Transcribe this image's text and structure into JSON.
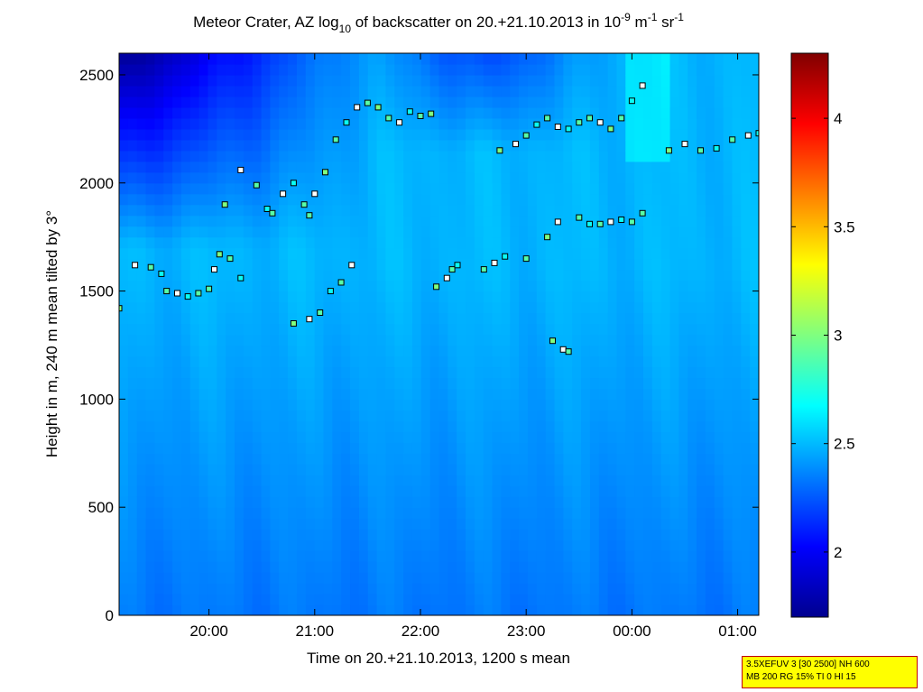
{
  "chart_data": {
    "type": "heatmap",
    "title_parts": {
      "main": "Meteor Crater, AZ log",
      "sub10": "10",
      "mid": " of backscatter on 20.+21.10.2013 in 10",
      "exp1": "-9",
      "unit1": " m",
      "exp2": "-1",
      "unit2": " sr",
      "exp3": "-1"
    },
    "xlabel": "Time on 20.+21.10.2013, 1200 s mean",
    "ylabel": "Height in m, 240 m mean tilted by 3°",
    "x_axis": {
      "start_hours": 19.15,
      "end_hours": 25.2,
      "ticks": [
        {
          "hours": 20,
          "label": "20:00"
        },
        {
          "hours": 21,
          "label": "21:00"
        },
        {
          "hours": 22,
          "label": "22:00"
        },
        {
          "hours": 23,
          "label": "23:00"
        },
        {
          "hours": 24,
          "label": "00:00"
        },
        {
          "hours": 25,
          "label": "01:00"
        }
      ]
    },
    "y_axis": {
      "ylim": [
        0,
        2600
      ],
      "ticks": [
        0,
        500,
        1000,
        1500,
        2000,
        2500
      ]
    },
    "colorbar": {
      "colormap": "jet",
      "range": [
        1.7,
        4.3
      ],
      "ticks": [
        2,
        2.5,
        3,
        3.5,
        4
      ]
    },
    "background_field": {
      "description_values_log10": "low heights ~2.35, mid heights ~2.45-2.6, upper region near 2400-2600 m at 19:15-21:30 ~1.8-2.0"
    },
    "cloud_layers": [
      {
        "name": "layer-A",
        "points": [
          [
            19.15,
            1420
          ],
          [
            19.3,
            1620
          ],
          [
            19.45,
            1610
          ],
          [
            19.55,
            1580
          ],
          [
            19.6,
            1500
          ],
          [
            19.7,
            1490
          ],
          [
            19.8,
            1475
          ],
          [
            19.9,
            1490
          ],
          [
            20.0,
            1510
          ],
          [
            20.05,
            1600
          ],
          [
            20.1,
            1670
          ],
          [
            20.2,
            1650
          ],
          [
            20.3,
            1560
          ]
        ]
      },
      {
        "name": "layer-B",
        "points": [
          [
            20.15,
            1900
          ],
          [
            20.3,
            2060
          ],
          [
            20.45,
            1990
          ],
          [
            20.55,
            1880
          ],
          [
            20.6,
            1860
          ],
          [
            20.7,
            1950
          ],
          [
            20.8,
            2000
          ],
          [
            20.9,
            1900
          ],
          [
            20.95,
            1850
          ],
          [
            21.0,
            1950
          ],
          [
            21.1,
            2050
          ],
          [
            21.2,
            2200
          ],
          [
            21.3,
            2280
          ],
          [
            21.4,
            2350
          ],
          [
            21.5,
            2370
          ],
          [
            21.6,
            2350
          ],
          [
            21.7,
            2300
          ],
          [
            21.8,
            2280
          ],
          [
            21.9,
            2330
          ],
          [
            22.0,
            2310
          ],
          [
            22.1,
            2320
          ]
        ]
      },
      {
        "name": "layer-C",
        "points": [
          [
            20.8,
            1350
          ],
          [
            20.95,
            1370
          ],
          [
            21.05,
            1400
          ],
          [
            21.15,
            1500
          ],
          [
            21.25,
            1540
          ],
          [
            21.35,
            1620
          ]
        ]
      },
      {
        "name": "layer-D",
        "points": [
          [
            22.15,
            1520
          ],
          [
            22.25,
            1560
          ],
          [
            22.3,
            1600
          ],
          [
            22.35,
            1620
          ],
          [
            22.6,
            1600
          ],
          [
            22.7,
            1630
          ],
          [
            22.8,
            1660
          ],
          [
            23.0,
            1650
          ]
        ]
      },
      {
        "name": "layer-E",
        "points": [
          [
            22.75,
            2150
          ],
          [
            22.9,
            2180
          ],
          [
            23.0,
            2220
          ],
          [
            23.1,
            2270
          ],
          [
            23.2,
            2300
          ],
          [
            23.3,
            2260
          ],
          [
            23.4,
            2250
          ],
          [
            23.5,
            2280
          ],
          [
            23.6,
            2300
          ],
          [
            23.7,
            2280
          ],
          [
            23.8,
            2250
          ],
          [
            23.9,
            2300
          ],
          [
            24.0,
            2380
          ],
          [
            24.1,
            2450
          ]
        ]
      },
      {
        "name": "layer-F",
        "points": [
          [
            23.2,
            1750
          ],
          [
            23.3,
            1820
          ],
          [
            23.5,
            1840
          ],
          [
            23.6,
            1810
          ],
          [
            23.7,
            1810
          ],
          [
            23.8,
            1820
          ],
          [
            23.9,
            1830
          ],
          [
            24.0,
            1820
          ],
          [
            24.1,
            1860
          ]
        ]
      },
      {
        "name": "layer-G",
        "points": [
          [
            23.25,
            1270
          ],
          [
            23.35,
            1230
          ],
          [
            23.4,
            1220
          ]
        ]
      },
      {
        "name": "layer-H",
        "points": [
          [
            24.35,
            2150
          ],
          [
            24.5,
            2180
          ],
          [
            24.65,
            2150
          ],
          [
            24.8,
            2160
          ],
          [
            24.95,
            2200
          ],
          [
            25.1,
            2220
          ],
          [
            25.2,
            2230
          ]
        ]
      }
    ]
  },
  "info_box": {
    "line1": "3.5XEFUV 3 [30 2500] NH 600",
    "line2": "MB 200 RG 15% TI 0 HI 15"
  },
  "colors": {
    "jet_low": "#00008f",
    "jet_high": "#800000",
    "marker_edge": "#000000"
  }
}
